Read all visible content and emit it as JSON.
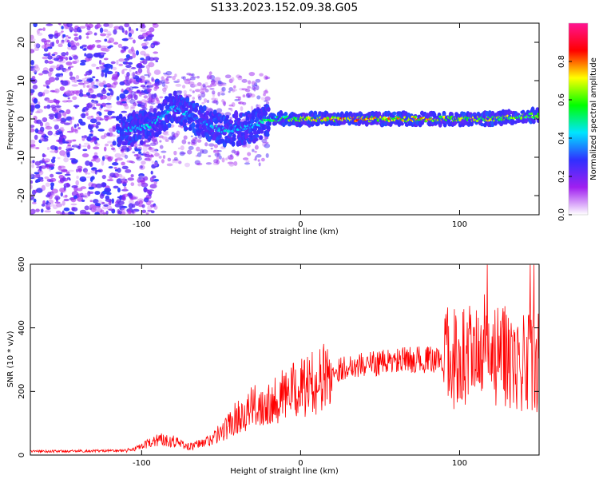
{
  "title": "S133.2023.152.09.38.G05",
  "chart_data": [
    {
      "type": "heatmap",
      "xlabel": "Height of straight line (km)",
      "ylabel": "Frequency (Hz)",
      "xlim": [
        -170,
        150
      ],
      "ylim": [
        -25,
        25
      ],
      "xticks": [
        -100,
        0,
        100
      ],
      "yticks": [
        -20,
        -10,
        0,
        10,
        20
      ],
      "colorbar": {
        "label": "Normalized spectral amplitude",
        "range": [
          0,
          1
        ],
        "ticks": [
          "0.0",
          "0.2",
          "0.4",
          "0.6",
          "0.8"
        ],
        "colormap": [
          "#ffffff",
          "#a020f0",
          "#3030ff",
          "#00e5ff",
          "#00ff00",
          "#ffff00",
          "#ff0000",
          "#ff1493"
        ]
      },
      "ridge": [
        {
          "x": -110,
          "freq": -3,
          "amp": 0.4
        },
        {
          "x": -95,
          "freq": -2,
          "amp": 0.45
        },
        {
          "x": -80,
          "freq": 3,
          "amp": 0.4
        },
        {
          "x": -65,
          "freq": 0,
          "amp": 0.4
        },
        {
          "x": -50,
          "freq": -3,
          "amp": 0.45
        },
        {
          "x": -30,
          "freq": -2,
          "amp": 0.4
        },
        {
          "x": -20,
          "freq": 0,
          "amp": 0.55
        },
        {
          "x": 0,
          "freq": 0,
          "amp": 0.65
        },
        {
          "x": 25,
          "freq": 0,
          "amp": 0.8
        },
        {
          "x": 50,
          "freq": 0,
          "amp": 0.75
        },
        {
          "x": 75,
          "freq": 0,
          "amp": 0.75
        },
        {
          "x": 100,
          "freq": 0,
          "amp": 0.7
        },
        {
          "x": 120,
          "freq": 0,
          "amp": 0.7
        },
        {
          "x": 150,
          "freq": 1,
          "amp": 0.6
        }
      ]
    },
    {
      "type": "line",
      "xlabel": "Height of straight line (km)",
      "ylabel": "SNR (10 * v/v)",
      "xlim": [
        -170,
        150
      ],
      "ylim": [
        0,
        600
      ],
      "xticks": [
        -100,
        0,
        100
      ],
      "yticks": [
        0,
        200,
        400,
        600
      ],
      "color": "#ff0000",
      "series": [
        {
          "x": [
            -170,
            -150,
            -130,
            -110,
            -100,
            -90,
            -80,
            -70,
            -60,
            -50,
            -40,
            -30,
            -20,
            -10,
            0,
            10,
            20,
            30,
            40,
            50,
            60,
            70,
            80,
            90,
            100,
            110,
            120,
            130,
            140,
            150
          ],
          "values": [
            12,
            12,
            13,
            14,
            25,
            50,
            45,
            25,
            40,
            70,
            120,
            150,
            170,
            190,
            210,
            230,
            260,
            280,
            285,
            290,
            295,
            300,
            300,
            300,
            310,
            300,
            300,
            310,
            290,
            300
          ]
        }
      ]
    }
  ]
}
